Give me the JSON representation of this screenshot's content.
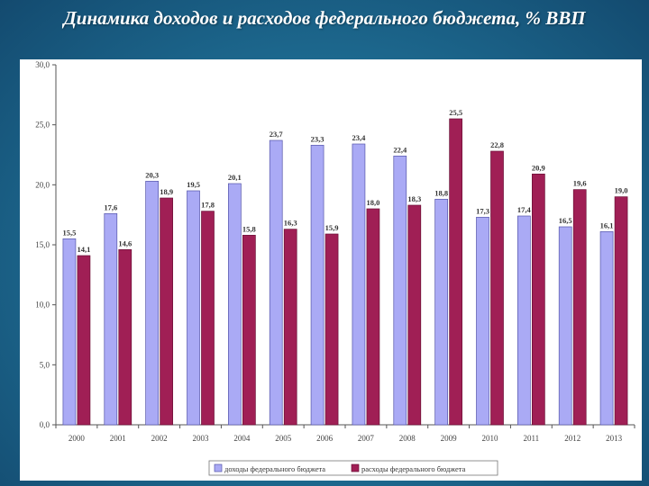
{
  "title": "Динамика доходов и расходов федерального бюджета, % ВВП",
  "colors": {
    "income_fill": "#aaaaf5",
    "income_stroke": "#5555aa",
    "expense_fill": "#a01f55",
    "expense_stroke": "#6a0f35",
    "tick_text": "#444444"
  },
  "chart_data": {
    "type": "bar",
    "title": "",
    "xlabel": "",
    "ylabel": "",
    "ylim": [
      0,
      30
    ],
    "yticks": [
      "0,0",
      "5,0",
      "10,0",
      "15,0",
      "20,0",
      "25,0",
      "30,0"
    ],
    "categories": [
      "2000",
      "2001",
      "2002",
      "2003",
      "2004",
      "2005",
      "2006",
      "2007",
      "2008",
      "2009",
      "2010",
      "2011",
      "2012",
      "2013"
    ],
    "series": [
      {
        "name": "доходы федерального бюджета",
        "values": [
          15.5,
          17.6,
          20.3,
          19.5,
          20.1,
          23.7,
          23.3,
          23.4,
          22.4,
          18.8,
          17.3,
          17.4,
          16.5,
          16.1
        ],
        "labels": [
          "15,5",
          "17,6",
          "20,3",
          "19,5",
          "20,1",
          "23,7",
          "23,3",
          "23,4",
          "22,4",
          "18,8",
          "17,3",
          "17,4",
          "16,5",
          "16,1"
        ]
      },
      {
        "name": "расходы федерального бюджета",
        "values": [
          14.1,
          14.6,
          18.9,
          17.8,
          15.8,
          16.3,
          15.9,
          18.0,
          18.3,
          25.5,
          22.8,
          20.9,
          19.6,
          19.0
        ],
        "labels": [
          "14,1",
          "14,6",
          "18,9",
          "17,8",
          "15,8",
          "16,3",
          "15,9",
          "18,0",
          "18,3",
          "25,5",
          "22,8",
          "20,9",
          "19,6",
          "19,0"
        ]
      }
    ],
    "grid": false,
    "legend_position": "bottom"
  }
}
